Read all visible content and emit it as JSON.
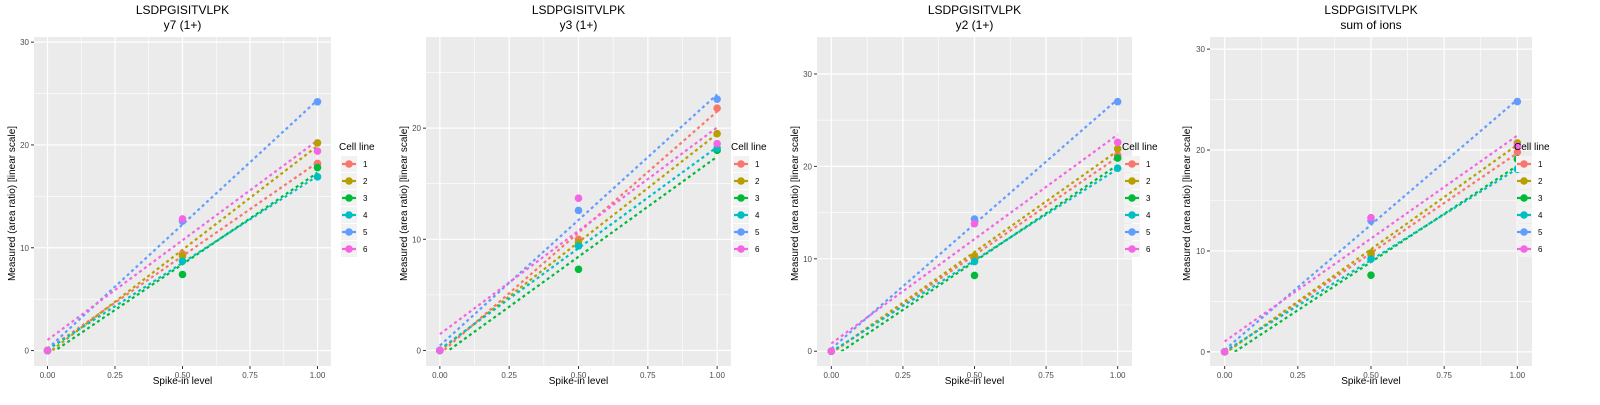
{
  "legend": {
    "title": "Cell line",
    "labels": [
      "1",
      "2",
      "3",
      "4",
      "5",
      "6"
    ],
    "colors": [
      "#F8766D",
      "#B79F00",
      "#00BA38",
      "#00BFC4",
      "#619CFF",
      "#F564E3"
    ]
  },
  "chart_data": [
    {
      "type": "scatter",
      "title": "LSDPGISITVLPK",
      "subtitle": "y7 (1+)",
      "xlabel": "Spike-in level",
      "ylabel": "Measured (area ratio) [linear scale]",
      "x": [
        0,
        0.5,
        1
      ],
      "xticks": [
        "0.00",
        "0.25",
        "0.50",
        "0.75",
        "1.00"
      ],
      "xtick_values": [
        0,
        0.25,
        0.5,
        0.75,
        1
      ],
      "yticks": [
        "0",
        "10",
        "20",
        "30"
      ],
      "ytick_values": [
        0,
        10,
        20,
        30
      ],
      "xlim": [
        -0.05,
        1.05
      ],
      "ylim": [
        -1.5,
        30.5
      ],
      "grid": true,
      "trend": "dashed linear fit per series",
      "series": [
        {
          "name": "1",
          "values": [
            0,
            9.4,
            18.2
          ]
        },
        {
          "name": "2",
          "values": [
            0,
            9.2,
            20.2
          ]
        },
        {
          "name": "3",
          "values": [
            0,
            7.4,
            17.8
          ]
        },
        {
          "name": "4",
          "values": [
            0,
            8.7,
            16.9
          ]
        },
        {
          "name": "5",
          "values": [
            0,
            12.6,
            24.2
          ]
        },
        {
          "name": "6",
          "values": [
            0,
            12.8,
            19.4
          ]
        }
      ]
    },
    {
      "type": "scatter",
      "title": "LSDPGISITVLPK",
      "subtitle": "y3 (1+)",
      "xlabel": "Spike-in level",
      "ylabel": "Measured (area ratio) [linear scale]",
      "x": [
        0,
        0.5,
        1
      ],
      "xticks": [
        "0.00",
        "0.25",
        "0.50",
        "0.75",
        "1.00"
      ],
      "xtick_values": [
        0,
        0.25,
        0.5,
        0.75,
        1
      ],
      "yticks": [
        "0",
        "10",
        "20"
      ],
      "ytick_values": [
        0,
        10,
        20
      ],
      "xlim": [
        -0.05,
        1.05
      ],
      "ylim": [
        -1.4,
        28.2
      ],
      "grid": true,
      "trend": "dashed linear fit per series",
      "series": [
        {
          "name": "1",
          "values": [
            0,
            10.0,
            21.8
          ]
        },
        {
          "name": "2",
          "values": [
            0,
            9.7,
            19.5
          ]
        },
        {
          "name": "3",
          "values": [
            0,
            7.3,
            18.0
          ]
        },
        {
          "name": "4",
          "values": [
            0,
            9.4,
            18.2
          ]
        },
        {
          "name": "5",
          "values": [
            0,
            12.6,
            22.6
          ]
        },
        {
          "name": "6",
          "values": [
            0,
            13.7,
            18.6
          ]
        }
      ]
    },
    {
      "type": "scatter",
      "title": "LSDPGISITVLPK",
      "subtitle": "y2 (1+)",
      "xlabel": "Spike-in level",
      "ylabel": "Measured (area ratio) [linear scale]",
      "x": [
        0,
        0.5,
        1
      ],
      "xticks": [
        "0.00",
        "0.25",
        "0.50",
        "0.75",
        "1.00"
      ],
      "xtick_values": [
        0,
        0.25,
        0.5,
        0.75,
        1
      ],
      "yticks": [
        "0",
        "10",
        "20",
        "30"
      ],
      "ytick_values": [
        0,
        10,
        20,
        30
      ],
      "xlim": [
        -0.05,
        1.05
      ],
      "ylim": [
        -1.6,
        34.0
      ],
      "grid": true,
      "trend": "dashed linear fit per series",
      "series": [
        {
          "name": "1",
          "values": [
            0,
            10.0,
            21.2
          ]
        },
        {
          "name": "2",
          "values": [
            0,
            10.3,
            21.9
          ]
        },
        {
          "name": "3",
          "values": [
            0,
            8.2,
            20.9
          ]
        },
        {
          "name": "4",
          "values": [
            0,
            9.7,
            19.8
          ]
        },
        {
          "name": "5",
          "values": [
            0,
            14.3,
            27.0
          ]
        },
        {
          "name": "6",
          "values": [
            0,
            13.8,
            22.6
          ]
        }
      ]
    },
    {
      "type": "scatter",
      "title": "LSDPGISITVLPK",
      "subtitle": "sum of ions",
      "xlabel": "Spike-in level",
      "ylabel": "Measured (area ratio) [linear scale]",
      "x": [
        0,
        0.5,
        1
      ],
      "xticks": [
        "0.00",
        "0.25",
        "0.50",
        "0.75",
        "1.00"
      ],
      "xtick_values": [
        0,
        0.25,
        0.5,
        0.75,
        1
      ],
      "yticks": [
        "0",
        "10",
        "20",
        "30"
      ],
      "ytick_values": [
        0,
        10,
        20,
        30
      ],
      "xlim": [
        -0.05,
        1.05
      ],
      "ylim": [
        -1.4,
        31.2
      ],
      "grid": true,
      "trend": "dashed linear fit per series",
      "series": [
        {
          "name": "1",
          "values": [
            0,
            9.6,
            19.8
          ]
        },
        {
          "name": "2",
          "values": [
            0,
            9.8,
            20.7
          ]
        },
        {
          "name": "3",
          "values": [
            0,
            7.6,
            19.1
          ]
        },
        {
          "name": "4",
          "values": [
            0,
            9.2,
            18.1
          ]
        },
        {
          "name": "5",
          "values": [
            0,
            13.0,
            24.8
          ]
        },
        {
          "name": "6",
          "values": [
            0,
            13.3,
            20.4
          ]
        }
      ]
    }
  ]
}
